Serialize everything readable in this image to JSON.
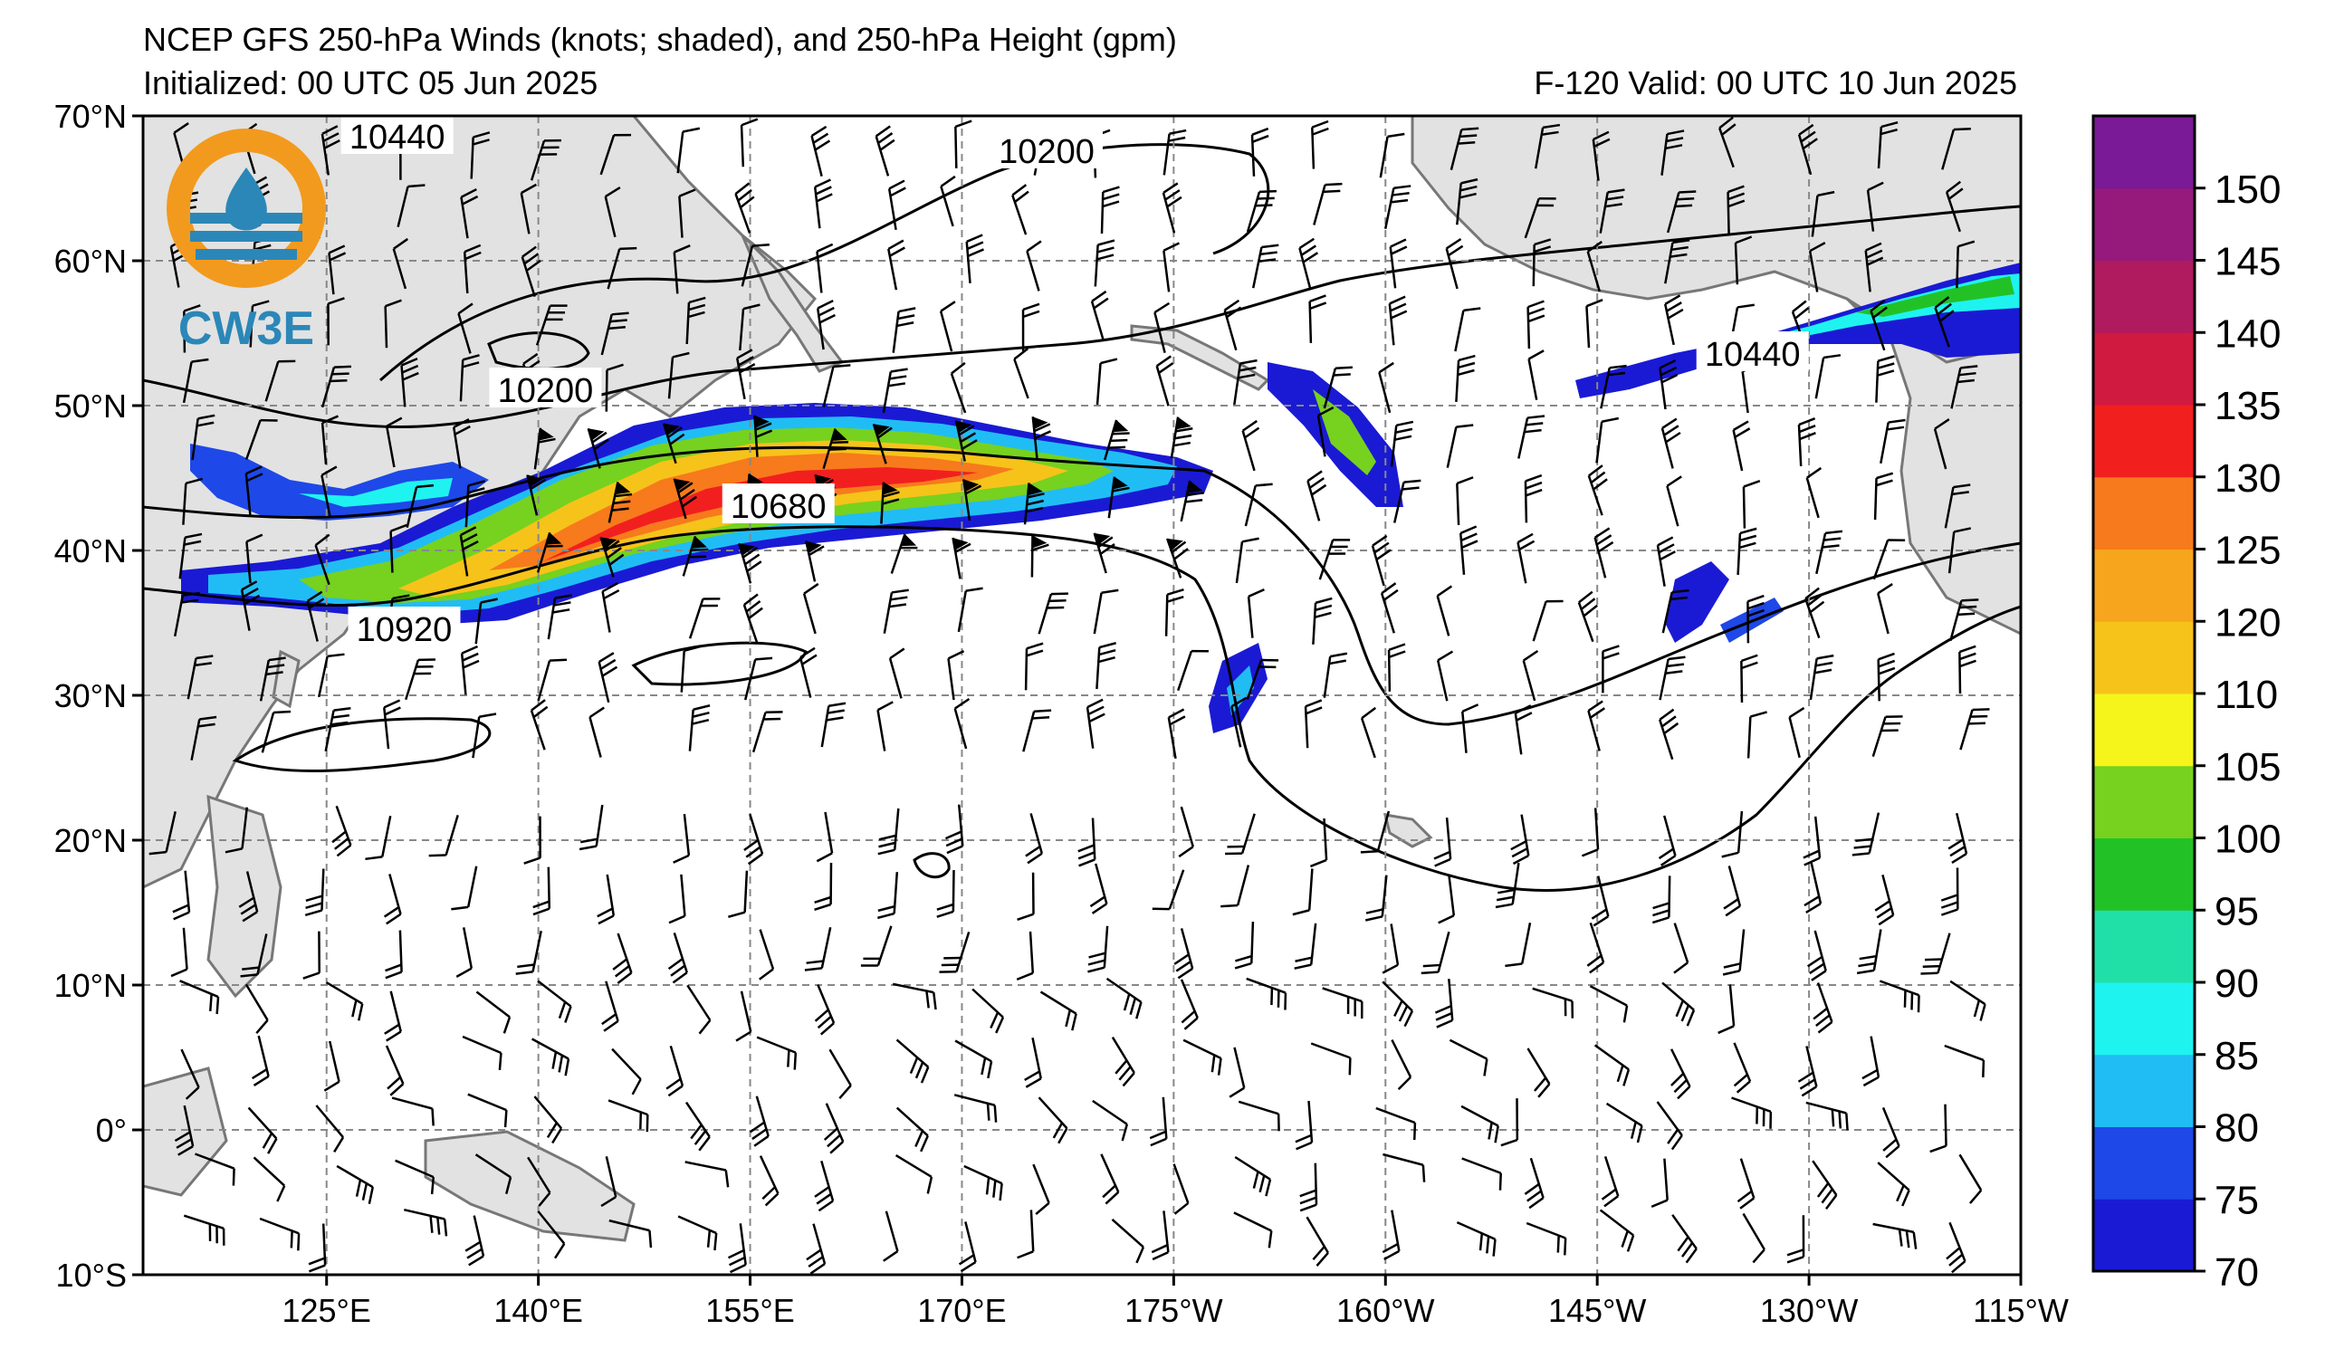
{
  "header": {
    "title": "NCEP GFS 250-hPa Winds (knots; shaded), and 250-hPa Height (gpm)",
    "initialized": "Initialized: 00 UTC 05 Jun 2025",
    "valid": "F-120  Valid: 00 UTC 10 Jun 2025"
  },
  "logo": {
    "text": "CW3E"
  },
  "axes": {
    "lat_labels": [
      "70°N",
      "60°N",
      "50°N",
      "40°N",
      "30°N",
      "20°N",
      "10°N",
      "0°",
      "10°S"
    ],
    "lat_values": [
      70,
      60,
      50,
      40,
      30,
      20,
      10,
      0,
      -10
    ],
    "lon_labels": [
      "125°E",
      "140°E",
      "155°E",
      "170°E",
      "175°W",
      "160°W",
      "145°W",
      "130°W",
      "115°W"
    ],
    "lon_values": [
      125,
      140,
      155,
      170,
      185,
      200,
      215,
      230,
      245
    ],
    "lon_range": [
      112,
      245
    ],
    "lat_range": [
      -10,
      70
    ],
    "grid": true
  },
  "colorbar": {
    "levels": [
      "70",
      "75",
      "80",
      "85",
      "90",
      "95",
      "100",
      "105",
      "110",
      "120",
      "125",
      "130",
      "135",
      "140",
      "145",
      "150"
    ],
    "colors": [
      "#1a1ad4",
      "#1e48e8",
      "#20bdf5",
      "#1ff3f0",
      "#20e0a8",
      "#22c227",
      "#77d11f",
      "#f5f51c",
      "#f6c31a",
      "#f7a51c",
      "#f77a1c",
      "#f21f1f",
      "#d01a40",
      "#b01a5e",
      "#951a7c",
      "#7b1a96"
    ],
    "unit": "knots"
  },
  "contour_labels": [
    {
      "text": "10440",
      "lon": 130,
      "lat": 68.5
    },
    {
      "text": "10200",
      "lon": 176,
      "lat": 67.5
    },
    {
      "text": "10200",
      "lon": 140.5,
      "lat": 51
    },
    {
      "text": "10680",
      "lon": 157,
      "lat": 43
    },
    {
      "text": "10920",
      "lon": 130.5,
      "lat": 34.5
    },
    {
      "text": "10440",
      "lon": 226,
      "lat": 53.5
    }
  ],
  "colors": {
    "land": "#e2e2e2",
    "coast": "#777777",
    "grid": "#888888",
    "logo_orange": "#f29a1e",
    "logo_blue": "#2b87b8"
  }
}
